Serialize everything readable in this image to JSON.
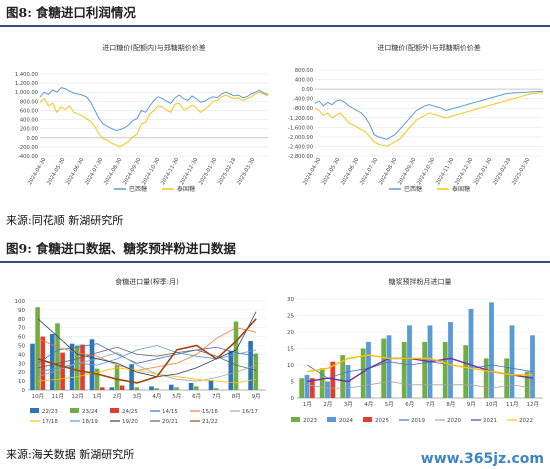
{
  "figure8": {
    "number": "图8:",
    "title": "食糖进口利润情况",
    "source": "来源:同花顺  新湖研究所"
  },
  "figure9": {
    "number": "图9:",
    "title": "食糖进口数据、糖浆预拌粉进口数据",
    "source": "来源:海关数据  新湖研究所"
  },
  "watermark": "www.365jz.com",
  "chart_data": [
    {
      "type": "line",
      "title": "进口糖价(配额内)与郑糖期价价差",
      "ylim": [
        -400,
        1400
      ],
      "yticks": [
        -400,
        -200,
        0,
        200,
        400,
        600,
        800,
        1000,
        1200,
        1400
      ],
      "ytick_labels": [
        "-400.00",
        "-200.00",
        "0.00",
        "200.00",
        "400.00",
        "600.00",
        "800.00",
        "1,000.00",
        "1,200.00",
        "1,400.00"
      ],
      "x_labels": [
        "2024-04-30",
        "2024-05-30",
        "2024-06-30",
        "2024-07-30",
        "2024-08-30",
        "2024-09-30",
        "2024-10-30",
        "2024-11-30",
        "2024-12-30",
        "2025-01-30",
        "2025-02-28",
        "2025-03-30"
      ],
      "series": [
        {
          "name": "巴西糖",
          "color": "#5b9bd5",
          "values": [
            900,
            1000,
            950,
            1050,
            1000,
            1100,
            1080,
            1020,
            980,
            960,
            940,
            900,
            780,
            600,
            420,
            300,
            250,
            200,
            160,
            180,
            220,
            280,
            380,
            420,
            600,
            560,
            700,
            820,
            900,
            860,
            800,
            760,
            880,
            940,
            860,
            820,
            920,
            860,
            780,
            800,
            860,
            900,
            880,
            960,
            1000,
            960,
            920,
            940,
            880,
            900,
            960,
            1000,
            1040,
            980,
            950
          ]
        },
        {
          "name": "泰国糖",
          "color": "#f5c518",
          "values": [
            780,
            860,
            700,
            760,
            560,
            680,
            620,
            700,
            560,
            520,
            480,
            420,
            360,
            240,
            80,
            -20,
            -60,
            -120,
            -160,
            -200,
            -140,
            -80,
            20,
            80,
            300,
            340,
            520,
            600,
            700,
            680,
            600,
            560,
            740,
            760,
            620,
            640,
            720,
            660,
            560,
            620,
            700,
            800,
            820,
            900,
            940,
            900,
            860,
            880,
            820,
            860,
            900,
            960,
            1000,
            960,
            920
          ]
        }
      ]
    },
    {
      "type": "line",
      "title": "进口糖价(配额外)与郑糖期价价差",
      "ylim": [
        -2800,
        800
      ],
      "yticks": [
        -2800,
        -2400,
        -2000,
        -1600,
        -1200,
        -800,
        -400,
        0,
        400,
        800
      ],
      "ytick_labels": [
        "-2,800.00",
        "-2,400.00",
        "-2,000.00",
        "-1,600.00",
        "-1,200.00",
        "-800.00",
        "-400.00",
        "0.00",
        "400.00",
        "800.00"
      ],
      "x_labels": [
        "2024-04-30",
        "2024-05-30",
        "2024-06-30",
        "2024-07-30",
        "2024-08-30",
        "2024-09-30",
        "2024-10-30",
        "2024-11-30",
        "2024-12-30",
        "2025-01-30",
        "2025-02-28",
        "2025-03-30"
      ],
      "series": [
        {
          "name": "巴西糖",
          "color": "#5b9bd5",
          "values": [
            -600,
            -500,
            -700,
            -550,
            -650,
            -500,
            -450,
            -550,
            -700,
            -800,
            -900,
            -1000,
            -1200,
            -1500,
            -1900,
            -2000,
            -2050,
            -2100,
            -2000,
            -1900,
            -1700,
            -1500,
            -1300,
            -1100,
            -900,
            -800,
            -700,
            -650,
            -700,
            -750,
            -800,
            -900,
            -850,
            -800,
            -750,
            -700,
            -650,
            -600,
            -550,
            -500,
            -450,
            -400,
            -350,
            -300,
            -250,
            -200,
            -180,
            -160,
            -150,
            -140,
            -130,
            -120,
            -110,
            -100,
            -90
          ]
        },
        {
          "name": "泰国糖",
          "color": "#f5c518",
          "values": [
            -800,
            -900,
            -1100,
            -1000,
            -1200,
            -1100,
            -1000,
            -1200,
            -1400,
            -1500,
            -1600,
            -1700,
            -1800,
            -2000,
            -2200,
            -2300,
            -2350,
            -2400,
            -2300,
            -2200,
            -2100,
            -1900,
            -1700,
            -1500,
            -1300,
            -1200,
            -1100,
            -1000,
            -1050,
            -1100,
            -1150,
            -1200,
            -1150,
            -1100,
            -1050,
            -1000,
            -950,
            -900,
            -850,
            -800,
            -750,
            -700,
            -650,
            -600,
            -550,
            -500,
            -450,
            -400,
            -350,
            -300,
            -250,
            -200,
            -180,
            -160,
            -150
          ]
        }
      ]
    },
    {
      "type": "line",
      "title": "食糖进口量(榨季:月)",
      "ylim": [
        0,
        100
      ],
      "yticks": [
        0,
        10,
        20,
        30,
        40,
        50,
        60,
        70,
        80,
        90,
        100
      ],
      "categories": [
        "10月",
        "11月",
        "12月",
        "1月",
        "2月",
        "3月",
        "4月",
        "5月",
        "6月",
        "7月",
        "8月",
        "9月"
      ],
      "series": [
        {
          "name": "22/23",
          "color": "#2e75b6",
          "kind": "bar",
          "values": [
            52,
            63,
            52,
            57,
            3,
            29,
            4,
            6,
            8,
            11,
            44,
            55
          ]
        },
        {
          "name": "23/24",
          "color": "#70ad47",
          "kind": "bar",
          "values": [
            93,
            75,
            50,
            24,
            28,
            3,
            2,
            3,
            4,
            2,
            77,
            41
          ]
        },
        {
          "name": "24/25",
          "color": "#e03c31",
          "kind": "bar",
          "values": [
            60,
            42,
            51,
            3,
            5,
            0,
            0,
            0,
            0,
            0,
            0,
            0
          ]
        },
        {
          "name": "14/15",
          "color": "#4472c4",
          "kind": "line",
          "values": [
            30,
            45,
            48,
            52,
            40,
            30,
            35,
            40,
            45,
            48,
            42,
            38
          ]
        },
        {
          "name": "15/16",
          "color": "#ed7d31",
          "kind": "line",
          "values": [
            58,
            48,
            42,
            38,
            28,
            22,
            26,
            30,
            40,
            58,
            70,
            65
          ]
        },
        {
          "name": "16/17",
          "color": "#a5a5a5",
          "kind": "line",
          "values": [
            15,
            22,
            30,
            35,
            42,
            28,
            18,
            12,
            10,
            14,
            20,
            28
          ]
        },
        {
          "name": "17/18",
          "color": "#ffc000",
          "kind": "line",
          "values": [
            10,
            12,
            15,
            20,
            25,
            22,
            18,
            15,
            12,
            10,
            8,
            12
          ]
        },
        {
          "name": "18/19",
          "color": "#5b9bd5",
          "kind": "line",
          "values": [
            20,
            25,
            30,
            28,
            35,
            45,
            50,
            42,
            38,
            35,
            40,
            45
          ]
        },
        {
          "name": "19/20",
          "color": "#264478",
          "kind": "line",
          "values": [
            80,
            60,
            40,
            35,
            30,
            20,
            15,
            18,
            25,
            35,
            45,
            88
          ]
        },
        {
          "name": "20/21",
          "color": "#636363",
          "kind": "line",
          "values": [
            25,
            30,
            35,
            42,
            48,
            40,
            38,
            42,
            45,
            38,
            28,
            22
          ]
        },
        {
          "name": "21/22",
          "color": "#9e480e",
          "kind": "line",
          "values": [
            35,
            28,
            22,
            18,
            12,
            8,
            15,
            45,
            50,
            35,
            55,
            80
          ]
        }
      ]
    },
    {
      "type": "line",
      "title": "糖浆预拌粉月进口量",
      "ylim": [
        0,
        30
      ],
      "yticks": [
        0,
        5,
        10,
        15,
        20,
        25,
        30
      ],
      "categories": [
        "1月",
        "2月",
        "3月",
        "4月",
        "5月",
        "6月",
        "7月",
        "8月",
        "9月",
        "10月",
        "11月",
        "12月"
      ],
      "series": [
        {
          "name": "2023",
          "color": "#70ad47",
          "kind": "bar",
          "values": [
            6,
            9,
            13,
            15,
            18,
            17,
            17,
            17,
            16,
            12,
            12,
            8
          ]
        },
        {
          "name": "2024",
          "color": "#5b9bd5",
          "kind": "bar",
          "values": [
            7,
            5,
            10,
            17,
            19,
            22,
            22,
            23,
            27,
            29,
            22,
            19
          ]
        },
        {
          "name": "2025",
          "color": "#e03c31",
          "kind": "bar",
          "values": [
            6,
            11,
            0,
            0,
            0,
            0,
            0,
            0,
            0,
            0,
            0,
            0
          ]
        },
        {
          "name": "2019",
          "color": "#4472c4",
          "kind": "line",
          "values": [
            10,
            6,
            8,
            9,
            11,
            10,
            11,
            10,
            9,
            10,
            9,
            8
          ]
        },
        {
          "name": "2020",
          "color": "#a5a5a5",
          "kind": "line",
          "values": [
            4,
            3,
            3,
            4,
            5,
            4,
            4,
            4,
            4,
            3,
            4,
            3
          ]
        },
        {
          "name": "2021",
          "color": "#7030a0",
          "kind": "line",
          "values": [
            5,
            6,
            5,
            9,
            12,
            12,
            11,
            12,
            10,
            8,
            7,
            6
          ]
        },
        {
          "name": "2022",
          "color": "#ffc000",
          "kind": "line",
          "values": [
            8,
            9,
            12,
            13,
            12,
            12,
            12,
            10,
            9,
            8,
            7,
            7
          ]
        }
      ]
    }
  ]
}
